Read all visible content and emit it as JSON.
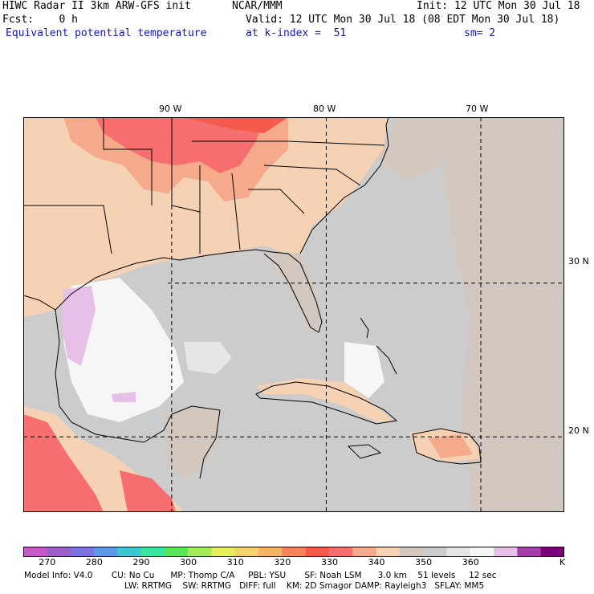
{
  "header": {
    "title": "HIWC Radar II 3km ARW-GFS init",
    "org": "NCAR/MMM",
    "init": "Init: 12 UTC Mon 30 Jul 18",
    "fcst": "Fcst:    0 h",
    "valid": "Valid: 12 UTC Mon 30 Jul 18 (08 EDT Mon 30 Jul 18)",
    "field": "Equivalent potential temperature",
    "level": "at k-index =  51",
    "smooth": "sm= 2"
  },
  "map": {
    "lon_labels": [
      "90 W",
      "80 W",
      "70 W"
    ],
    "lat_labels": [
      "30 N",
      "20 N"
    ],
    "grid_lon": [
      -90,
      -80,
      -70
    ],
    "grid_lat": [
      30,
      20
    ],
    "extent": {
      "lon_min": -99.6,
      "lon_max": -64.6,
      "lat_min": 15.1,
      "lat_max": 40.8
    }
  },
  "colorbar": {
    "unit": "K",
    "labels": [
      "270",
      "280",
      "290",
      "300",
      "310",
      "320",
      "330",
      "340",
      "350",
      "360"
    ],
    "colors": [
      "#c857c8",
      "#9a5fc8",
      "#7c72e2",
      "#5a9ae6",
      "#3cc8d2",
      "#38e6a0",
      "#5ae65a",
      "#a6ec5a",
      "#e6ee5a",
      "#f6d26e",
      "#f6b464",
      "#f6845a",
      "#f65a4c",
      "#f66e6e",
      "#f6aa8c",
      "#f6d2b4",
      "#d2c8c0",
      "#cccccc",
      "#e6e6e6",
      "#f6f6f6",
      "#e6c0e6",
      "#a63ca6",
      "#7a007a"
    ]
  },
  "model_info": {
    "line1": "Model Info: V4.0       CU: No Cu      MP: Thomp C/A     PBL: YSU       SF: Noah LSM      3.0 km    51 levels     12 sec",
    "line2": "LW: RRTMG    SW: RRTMG   DIFF: full    KM: 2D Smagor DAMP: Rayleigh3   SFLAY: MM5"
  }
}
